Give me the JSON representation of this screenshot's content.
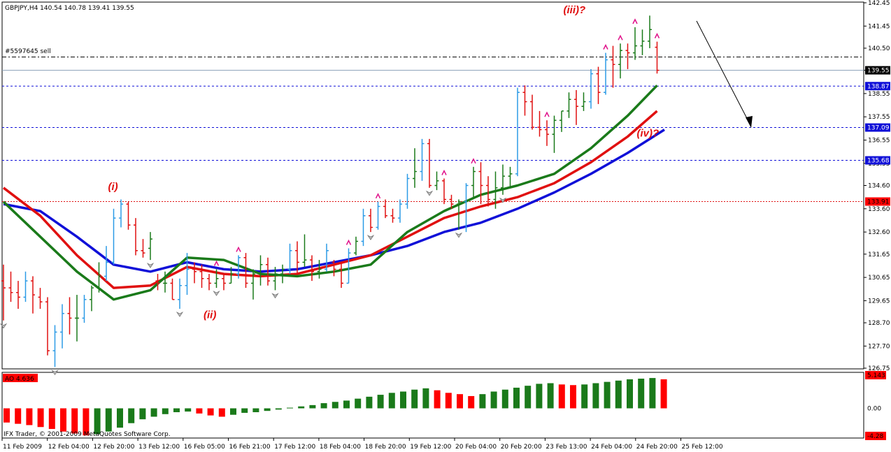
{
  "header": {
    "symbol_info": "GBPJPY,H4  140.54 140.78 139.41 139.55",
    "order_label": "#5597645 sell"
  },
  "footer": {
    "copyright": "IFX Trader, © 2001-2009 MetaQuotes Software Corp."
  },
  "colors": {
    "bull": "#1a7a1a",
    "bear": "#e01010",
    "up_bar": "#2c9be6",
    "ma_fast": "#1a7a1a",
    "ma_mid": "#e01010",
    "ma_slow": "#1010d8",
    "ao_up": "#1a7a1a",
    "ao_down": "#ff0000",
    "fractal": "#e0108a"
  },
  "chart_data": {
    "type": "ohlc",
    "price_axis": {
      "ticks": [
        "142.45",
        "141.45",
        "140.50",
        "139.55",
        "138.55",
        "137.55",
        "136.55",
        "135.55",
        "134.60",
        "133.60",
        "132.60",
        "131.65",
        "130.65",
        "129.65",
        "128.70",
        "127.70",
        "126.75"
      ],
      "ylim": [
        126.75,
        142.45
      ]
    },
    "price_markers": [
      {
        "value": 139.55,
        "label": "139.55",
        "style": "current"
      },
      {
        "value": 138.87,
        "label": "138.87",
        "style": "level"
      },
      {
        "value": 137.09,
        "label": "137.09",
        "style": "level"
      },
      {
        "value": 135.68,
        "label": "135.68",
        "style": "level"
      },
      {
        "value": 133.91,
        "label": "133.91",
        "style": "red"
      }
    ],
    "order_line": 140.12,
    "x_axis": [
      "11 Feb 2009",
      "12 Feb 04:00",
      "12 Feb 20:00",
      "13 Feb 12:00",
      "16 Feb 05:00",
      "16 Feb 21:00",
      "17 Feb 12:00",
      "18 Feb 04:00",
      "18 Feb 20:00",
      "19 Feb 12:00",
      "20 Feb 04:00",
      "20 Feb 20:00",
      "23 Feb 13:00",
      "24 Feb 04:00",
      "24 Feb 20:00",
      "25 Feb 12:00"
    ],
    "ohlc": [
      [
        130.5,
        131.2,
        128.8,
        130.2
      ],
      [
        130.2,
        130.9,
        129.6,
        130.0
      ],
      [
        130.0,
        130.5,
        129.3,
        129.8
      ],
      [
        129.8,
        130.9,
        129.6,
        130.5
      ],
      [
        130.5,
        130.7,
        129.1,
        129.9
      ],
      [
        129.8,
        130.2,
        129.3,
        129.6
      ],
      [
        129.6,
        129.8,
        127.3,
        127.5
      ],
      [
        127.5,
        128.6,
        126.8,
        128.3
      ],
      [
        128.3,
        129.5,
        127.6,
        129.1
      ],
      [
        129.1,
        129.8,
        128.2,
        128.9
      ],
      [
        128.9,
        129.9,
        127.9,
        128.9
      ],
      [
        128.9,
        129.9,
        128.7,
        129.7
      ],
      [
        129.7,
        130.3,
        129.2,
        130.2
      ],
      [
        130.2,
        131.3,
        130.0,
        130.7
      ],
      [
        130.7,
        132.0,
        130.5,
        131.3
      ],
      [
        131.3,
        133.6,
        131.2,
        133.2
      ],
      [
        133.2,
        134.0,
        132.8,
        133.8
      ],
      [
        133.8,
        133.9,
        132.7,
        132.9
      ],
      [
        132.9,
        133.2,
        131.6,
        131.8
      ],
      [
        131.8,
        132.3,
        131.5,
        131.7
      ],
      [
        131.9,
        132.6,
        131.4,
        132.3
      ],
      [
        130.5,
        130.8,
        130.1,
        130.4
      ],
      [
        130.4,
        130.9,
        130.0,
        130.4
      ],
      [
        130.4,
        130.6,
        129.7,
        129.7
      ],
      [
        129.7,
        130.6,
        129.3,
        130.3
      ],
      [
        130.3,
        131.7,
        129.9,
        131.0
      ],
      [
        131.0,
        131.3,
        130.4,
        130.9
      ],
      [
        130.9,
        131.2,
        130.2,
        130.6
      ],
      [
        130.6,
        130.8,
        130.1,
        130.4
      ],
      [
        130.4,
        131.0,
        130.2,
        130.6
      ],
      [
        130.6,
        130.8,
        130.1,
        130.4
      ],
      [
        130.4,
        131.1,
        130.4,
        130.8
      ],
      [
        130.8,
        131.6,
        130.6,
        131.5
      ],
      [
        131.5,
        131.7,
        130.2,
        130.4
      ],
      [
        130.4,
        131.0,
        129.7,
        130.8
      ],
      [
        130.8,
        131.6,
        130.3,
        131.2
      ],
      [
        131.2,
        131.5,
        130.3,
        130.5
      ],
      [
        130.5,
        131.1,
        130.1,
        130.8
      ],
      [
        130.8,
        131.2,
        130.4,
        131.0
      ],
      [
        131.0,
        132.1,
        130.8,
        131.8
      ],
      [
        131.8,
        132.2,
        130.8,
        131.3
      ],
      [
        131.3,
        132.5,
        131.1,
        131.4
      ],
      [
        131.4,
        131.6,
        130.5,
        130.9
      ],
      [
        130.9,
        131.4,
        130.6,
        131.0
      ],
      [
        131.0,
        132.1,
        130.9,
        131.8
      ],
      [
        131.3,
        131.4,
        130.7,
        131.0
      ],
      [
        131.0,
        131.3,
        130.2,
        130.4
      ],
      [
        130.4,
        131.9,
        130.4,
        131.7
      ],
      [
        131.7,
        132.4,
        131.6,
        132.2
      ],
      [
        132.2,
        133.6,
        132.0,
        133.3
      ],
      [
        133.3,
        133.6,
        132.6,
        132.8
      ],
      [
        132.8,
        133.9,
        132.7,
        133.7
      ],
      [
        133.7,
        134.0,
        133.2,
        133.3
      ],
      [
        133.3,
        133.6,
        133.0,
        133.2
      ],
      [
        133.2,
        134.0,
        133.0,
        133.8
      ],
      [
        133.8,
        135.1,
        133.6,
        134.9
      ],
      [
        134.9,
        136.2,
        134.5,
        135.2
      ],
      [
        135.2,
        136.6,
        134.8,
        136.4
      ],
      [
        136.4,
        136.6,
        134.5,
        134.6
      ],
      [
        134.6,
        135.2,
        134.4,
        134.8
      ],
      [
        134.8,
        134.9,
        133.8,
        134.0
      ],
      [
        134.0,
        134.2,
        133.6,
        133.8
      ],
      [
        133.8,
        134.0,
        132.7,
        133.9
      ],
      [
        133.9,
        134.7,
        132.6,
        134.6
      ],
      [
        134.6,
        135.4,
        134.1,
        135.2
      ],
      [
        135.2,
        135.6,
        133.8,
        134.6
      ],
      [
        134.6,
        135.0,
        133.7,
        134.0
      ],
      [
        134.0,
        135.2,
        133.6,
        134.5
      ],
      [
        134.5,
        135.5,
        134.2,
        135.0
      ],
      [
        135.0,
        135.4,
        134.5,
        135.1
      ],
      [
        135.1,
        138.8,
        135.0,
        138.6
      ],
      [
        138.6,
        138.9,
        137.6,
        138.2
      ],
      [
        138.2,
        138.5,
        137.0,
        137.1
      ],
      [
        137.1,
        137.8,
        136.7,
        137.0
      ],
      [
        137.0,
        137.4,
        136.3,
        136.8
      ],
      [
        136.8,
        137.6,
        136.0,
        137.4
      ],
      [
        137.4,
        137.8,
        136.9,
        137.8
      ],
      [
        137.8,
        138.6,
        137.5,
        138.3
      ],
      [
        138.3,
        138.7,
        137.2,
        138.0
      ],
      [
        138.0,
        138.6,
        137.8,
        138.2
      ],
      [
        138.2,
        139.6,
        137.9,
        139.4
      ],
      [
        139.4,
        139.7,
        138.1,
        138.6
      ],
      [
        138.6,
        140.3,
        138.5,
        140.0
      ],
      [
        140.0,
        140.6,
        138.8,
        139.8
      ],
      [
        139.8,
        140.7,
        139.2,
        140.4
      ],
      [
        140.4,
        140.7,
        139.6,
        140.3
      ],
      [
        140.3,
        141.4,
        140.0,
        140.6
      ],
      [
        140.6,
        141.3,
        140.2,
        140.8
      ],
      [
        140.8,
        141.9,
        140.5,
        141.3
      ],
      [
        140.54,
        140.78,
        139.41,
        139.55
      ]
    ],
    "ma_fast": [
      [
        0,
        133.9
      ],
      [
        5,
        132.4
      ],
      [
        10,
        130.9
      ],
      [
        15,
        129.7
      ],
      [
        20,
        130.1
      ],
      [
        25,
        131.5
      ],
      [
        30,
        131.4
      ],
      [
        35,
        130.8
      ],
      [
        40,
        130.7
      ],
      [
        45,
        130.9
      ],
      [
        50,
        131.2
      ],
      [
        55,
        132.6
      ],
      [
        60,
        133.5
      ],
      [
        65,
        134.2
      ],
      [
        70,
        134.6
      ],
      [
        75,
        135.1
      ],
      [
        80,
        136.2
      ],
      [
        85,
        137.6
      ],
      [
        89,
        138.9
      ]
    ],
    "ma_mid": [
      [
        0,
        134.5
      ],
      [
        5,
        133.3
      ],
      [
        10,
        131.6
      ],
      [
        15,
        130.2
      ],
      [
        20,
        130.3
      ],
      [
        25,
        131.1
      ],
      [
        30,
        130.8
      ],
      [
        35,
        130.7
      ],
      [
        40,
        130.8
      ],
      [
        45,
        131.2
      ],
      [
        50,
        131.6
      ],
      [
        55,
        132.4
      ],
      [
        60,
        133.2
      ],
      [
        65,
        133.7
      ],
      [
        70,
        134.1
      ],
      [
        75,
        134.7
      ],
      [
        80,
        135.6
      ],
      [
        85,
        136.7
      ],
      [
        89,
        137.8
      ]
    ],
    "ma_slow": [
      [
        0,
        133.8
      ],
      [
        5,
        133.5
      ],
      [
        10,
        132.4
      ],
      [
        15,
        131.2
      ],
      [
        20,
        130.9
      ],
      [
        25,
        131.3
      ],
      [
        30,
        131.0
      ],
      [
        35,
        130.9
      ],
      [
        40,
        131.0
      ],
      [
        45,
        131.3
      ],
      [
        50,
        131.6
      ],
      [
        55,
        132.0
      ],
      [
        60,
        132.6
      ],
      [
        65,
        133.0
      ],
      [
        70,
        133.6
      ],
      [
        75,
        134.3
      ],
      [
        80,
        135.1
      ],
      [
        85,
        136.0
      ],
      [
        90,
        137.0
      ]
    ],
    "fractals_up": [
      29,
      32,
      47,
      51,
      60,
      64,
      74,
      82,
      84,
      86,
      89
    ],
    "fractals_down": [
      0,
      7,
      20,
      24,
      29,
      37,
      50,
      58,
      62,
      68
    ],
    "wave_labels": [
      {
        "text": "(i)",
        "bar": 15,
        "price": 134.4
      },
      {
        "text": "(ii)",
        "bar": 28,
        "price": 128.9
      },
      {
        "text": "(iii)?",
        "bar": 77,
        "price": 142.0
      },
      {
        "text": "(iv)?",
        "bar": 87,
        "price": 136.7
      }
    ],
    "indicator": {
      "name": "AO 4.636",
      "axis_ticks": [
        "5.143",
        "0.00",
        "-4.28"
      ],
      "ylim": [
        -4.28,
        5.143
      ],
      "values": [
        -2.2,
        -2.4,
        -2.6,
        -2.9,
        -3.2,
        -3.6,
        -3.9,
        -4.2,
        -4.0,
        -3.6,
        -3.0,
        -2.3,
        -1.7,
        -1.3,
        -0.9,
        -0.6,
        -0.5,
        -0.8,
        -1.1,
        -1.3,
        -1.0,
        -0.7,
        -0.6,
        -0.4,
        -0.2,
        0.1,
        0.3,
        0.5,
        0.8,
        1.0,
        1.2,
        1.5,
        1.8,
        2.1,
        2.4,
        2.6,
        2.9,
        3.1,
        2.8,
        2.4,
        2.2,
        1.9,
        2.2,
        2.6,
        2.9,
        3.2,
        3.5,
        3.8,
        3.9,
        3.7,
        3.6,
        3.7,
        3.9,
        4.1,
        4.3,
        4.5,
        4.6,
        4.7,
        4.5
      ]
    }
  }
}
